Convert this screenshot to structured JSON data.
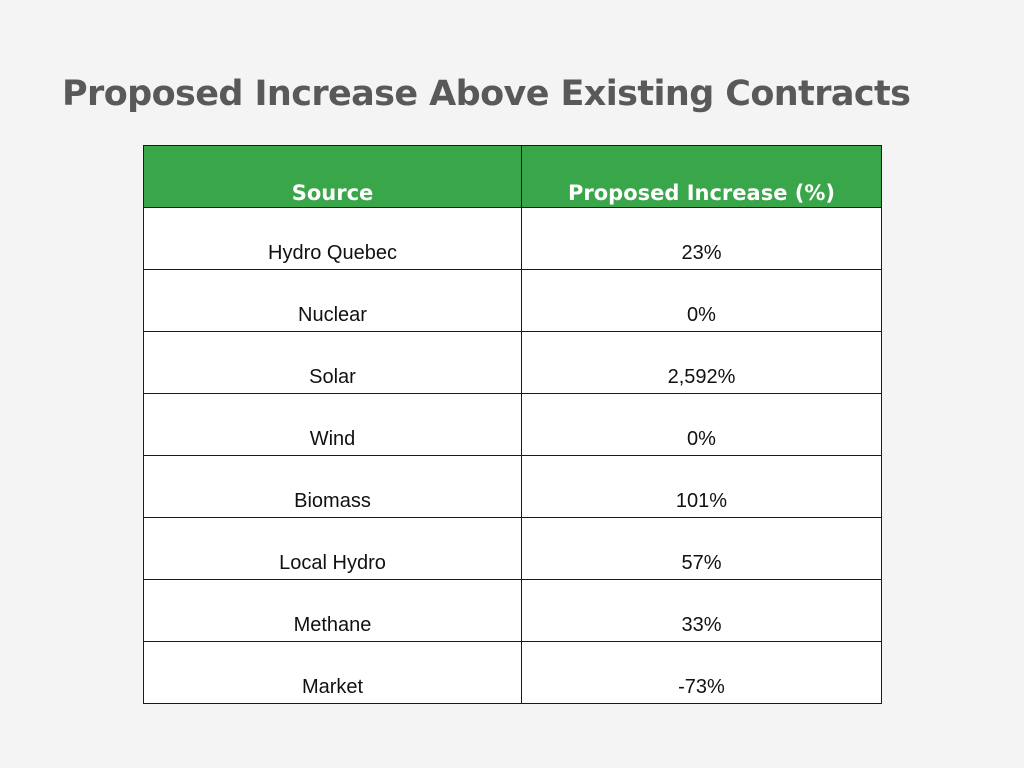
{
  "title": "Proposed Increase Above Existing Contracts",
  "table": {
    "headers": [
      "Source",
      "Proposed Increase (%)"
    ],
    "rows": [
      {
        "source": "Hydro Quebec",
        "increase": "23%"
      },
      {
        "source": "Nuclear",
        "increase": "0%"
      },
      {
        "source": "Solar",
        "increase": "2,592%"
      },
      {
        "source": "Wind",
        "increase": "0%"
      },
      {
        "source": "Biomass",
        "increase": "101%"
      },
      {
        "source": "Local Hydro",
        "increase": "57%"
      },
      {
        "source": "Methane",
        "increase": "33%"
      },
      {
        "source": "Market",
        "increase": "-73%"
      }
    ]
  },
  "colors": {
    "header_background": "#3aa64a",
    "header_text": "#ffffff",
    "title_text": "#595959",
    "page_background": "#f4f4f4"
  }
}
